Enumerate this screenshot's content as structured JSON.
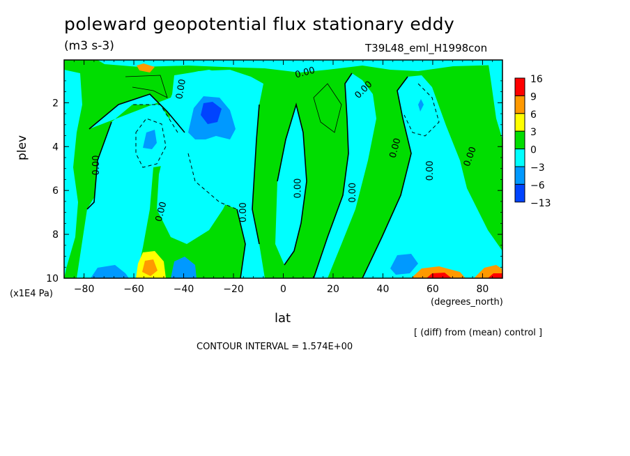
{
  "chart_data": {
    "type": "heatmap",
    "title": "poleward geopotential flux stationary eddy",
    "units": "(m3 s-3)",
    "run_label": "T39L48_eml_H1998con",
    "xlabel": "lat",
    "x_units": "(degrees_north)",
    "ylabel": "plev",
    "y_units": "(x1E4 Pa)",
    "xlim": [
      -88,
      88
    ],
    "ylim": [
      10,
      0.05
    ],
    "x_ticks": [
      -80,
      -60,
      -40,
      -20,
      0,
      20,
      40,
      60,
      80
    ],
    "y_ticks": [
      2,
      4,
      6,
      8,
      10
    ],
    "colorbar": {
      "levels": [
        "16",
        "9",
        "6",
        "3",
        "0",
        "-3",
        "-6",
        "-13"
      ],
      "colors": [
        "#ff0000",
        "#ff9900",
        "#ffff00",
        "#00dd00",
        "#00ffff",
        "#0099ff",
        "#0044ff"
      ]
    },
    "contour_labels": [
      "0.00"
    ],
    "contour_interval_text": "CONTOUR INTERVAL = 1.574E+00",
    "note": "[ (diff) from (mean) control ]"
  }
}
